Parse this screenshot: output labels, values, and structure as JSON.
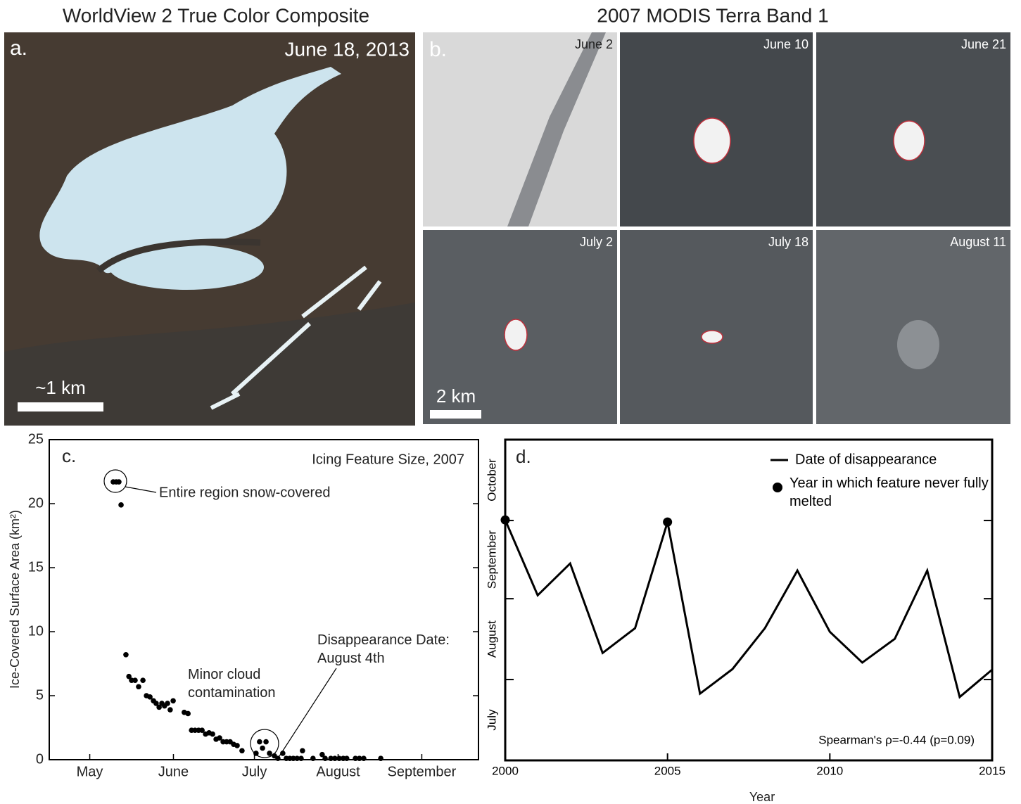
{
  "figure": {
    "panel_a": {
      "title": "WorldView 2 True Color Composite",
      "label": "a.",
      "date": "June 18, 2013",
      "scale": "~1 km"
    },
    "panel_b": {
      "title": "2007 MODIS Terra Band 1",
      "label": "b.",
      "tiles": [
        "June 2",
        "June 10",
        "June 21",
        "July 2",
        "July 18",
        "August 11"
      ],
      "scale": "2 km"
    }
  },
  "chart_data": [
    {
      "type": "scatter",
      "label": "c.",
      "title": "Icing Feature Size, 2007",
      "ylabel": "Ice-Covered Surface Area (km²)",
      "color": "#000000",
      "xlim": [
        106,
        265
      ],
      "ylim": [
        0,
        25
      ],
      "xticks": [
        {
          "value": 121,
          "label": "May"
        },
        {
          "value": 152,
          "label": "June"
        },
        {
          "value": 182,
          "label": "July"
        },
        {
          "value": 213,
          "label": "August"
        },
        {
          "value": 244,
          "label": "September"
        }
      ],
      "yticks": [
        0,
        5,
        10,
        15,
        20,
        25
      ],
      "x": [
        129.7,
        130.8,
        131.8,
        132.6,
        134.4,
        135.5,
        136.5,
        137.8,
        139.1,
        140.7,
        142.0,
        143.3,
        144.6,
        145.6,
        146.7,
        147.7,
        148.7,
        149.8,
        150.8,
        151.9,
        156.0,
        157.4,
        158.7,
        160.0,
        161.3,
        162.6,
        163.9,
        165.2,
        166.5,
        167.8,
        169.1,
        170.4,
        171.7,
        173.0,
        174.3,
        175.6,
        177.4,
        182.6,
        183.9,
        185.0,
        186.3,
        187.6,
        189.4,
        190.7,
        192.5,
        193.8,
        195.1,
        196.4,
        197.8,
        199.3,
        199.8,
        203.7,
        207.1,
        208.2,
        210.3,
        211.8,
        213.4,
        214.9,
        216.2,
        219.4,
        220.9,
        222.5,
        228.8
      ],
      "values": [
        21.7,
        21.7,
        21.7,
        19.9,
        8.2,
        6.5,
        6.2,
        6.2,
        5.7,
        6.2,
        5.0,
        4.9,
        4.6,
        4.4,
        4.1,
        4.4,
        4.2,
        4.4,
        3.9,
        4.6,
        3.7,
        3.6,
        2.3,
        2.3,
        2.3,
        2.3,
        2.0,
        2.1,
        2.0,
        1.6,
        1.7,
        1.4,
        1.4,
        1.4,
        1.2,
        1.1,
        0.7,
        0.5,
        1.4,
        0.9,
        1.4,
        0.5,
        0.3,
        0.1,
        0.5,
        0.1,
        0.1,
        0.1,
        0.1,
        0.1,
        0.7,
        0.1,
        0.4,
        0.1,
        0.1,
        0.1,
        0.1,
        0.1,
        0.1,
        0.1,
        0.1,
        0.1,
        0.1
      ],
      "annotations": [
        "Entire region snow-covered",
        "Minor cloud contamination",
        "Disappearance Date: August 4th"
      ]
    },
    {
      "type": "line",
      "label": "d.",
      "xlabel": "Year",
      "legend": "upper right",
      "xlim": [
        2000,
        2015
      ],
      "xticks": [
        2000,
        2005,
        2010,
        2015
      ],
      "ylim": [
        182,
        305
      ],
      "ytick_marks": [
        213,
        244,
        274
      ],
      "yticks": [
        {
          "value": 197.5,
          "label": "July"
        },
        {
          "value": 228.5,
          "label": "August"
        },
        {
          "value": 259,
          "label": "September"
        },
        {
          "value": 289.5,
          "label": "October"
        }
      ],
      "x": [
        2000,
        2001,
        2002,
        2003,
        2004,
        2005,
        2006,
        2007,
        2008,
        2009,
        2010,
        2011,
        2012,
        2013,
        2014,
        2015
      ],
      "series": [
        {
          "name": "Date of disappearance",
          "color": "#000000",
          "values": [
            274.2,
            245.3,
            257.5,
            223.2,
            232.7,
            273.4,
            207.6,
            217.0,
            232.7,
            254.8,
            231.3,
            219.5,
            228.6,
            254.8,
            206.3,
            216.8
          ]
        },
        {
          "name": "Year in which feature never fully melted",
          "color": "#000000",
          "marker": "circle",
          "x": [
            2000,
            2005
          ],
          "values": [
            274.2,
            273.4
          ]
        }
      ],
      "annotation": "Spearman's ρ=-0.44 (p=0.09)"
    }
  ]
}
